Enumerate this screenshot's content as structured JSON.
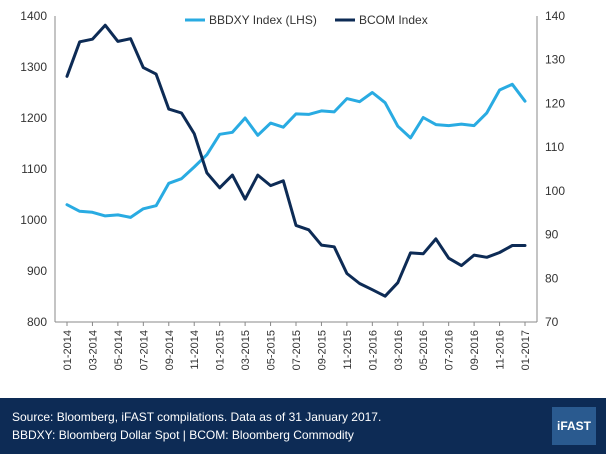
{
  "chart_data": {
    "type": "line",
    "x": [
      "01-2014",
      "02-2014",
      "03-2014",
      "04-2014",
      "05-2014",
      "06-2014",
      "07-2014",
      "08-2014",
      "09-2014",
      "10-2014",
      "11-2014",
      "12-2014",
      "01-2015",
      "02-2015",
      "03-2015",
      "04-2015",
      "05-2015",
      "06-2015",
      "07-2015",
      "08-2015",
      "09-2015",
      "10-2015",
      "11-2015",
      "12-2015",
      "01-2016",
      "02-2016",
      "03-2016",
      "04-2016",
      "05-2016",
      "06-2016",
      "07-2016",
      "08-2016",
      "09-2016",
      "10-2016",
      "11-2016",
      "12-2016",
      "01-2017"
    ],
    "xticks": [
      "01-2014",
      "03-2014",
      "05-2014",
      "07-2014",
      "09-2014",
      "11-2014",
      "01-2015",
      "03-2015",
      "05-2015",
      "07-2015",
      "09-2015",
      "11-2015",
      "01-2016",
      "03-2016",
      "05-2016",
      "07-2016",
      "09-2016",
      "11-2016",
      "01-2017"
    ],
    "series": [
      {
        "name": "BBDXY Index (LHS)",
        "axis": "left",
        "color": "#29abe2",
        "values": [
          1030,
          1017,
          1015,
          1008,
          1010,
          1005,
          1022,
          1028,
          1072,
          1081,
          1104,
          1128,
          1168,
          1172,
          1200,
          1166,
          1190,
          1182,
          1208,
          1207,
          1214,
          1212,
          1238,
          1232,
          1250,
          1230,
          1184,
          1161,
          1201,
          1187,
          1185,
          1188,
          1185,
          1210,
          1255,
          1266,
          1233
        ]
      },
      {
        "name": "BCOM Index",
        "axis": "right",
        "color": "#0d2b55",
        "values": [
          126.2,
          134.1,
          134.7,
          137.9,
          134.2,
          134.8,
          128.2,
          126.7,
          118.7,
          117.8,
          113.1,
          104.1,
          100.7,
          103.6,
          98.1,
          103.6,
          101.2,
          102.3,
          92.1,
          91.1,
          87.6,
          87.2,
          81.1,
          78.8,
          77.4,
          75.9,
          79.0,
          85.8,
          85.6,
          89.0,
          84.6,
          82.9,
          85.3,
          84.8,
          85.9,
          87.5,
          87.5
        ]
      }
    ],
    "yleft": {
      "ylim": [
        800,
        1400
      ],
      "ticks": [
        800,
        900,
        1000,
        1100,
        1200,
        1300,
        1400
      ]
    },
    "yright": {
      "ylim": [
        70,
        140
      ],
      "ticks": [
        70,
        80,
        90,
        100,
        110,
        120,
        130,
        140
      ]
    },
    "legend_position": "top-center",
    "grid": false
  },
  "footer": {
    "source": "Source: Bloomberg, iFAST compilations. Data as of 31 January 2017.",
    "note": "BBDXY: Bloomberg Dollar Spot | BCOM: Bloomberg Commodity",
    "logo": "iFAST"
  }
}
